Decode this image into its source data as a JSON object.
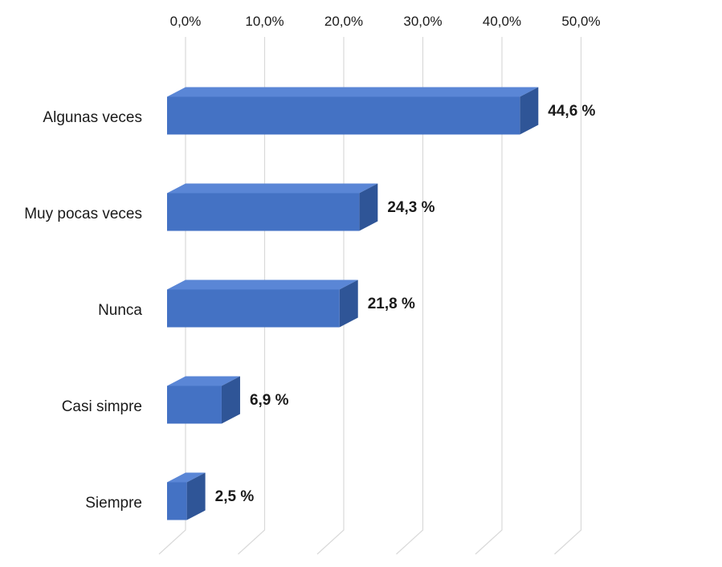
{
  "chart_data": {
    "type": "bar",
    "orientation": "horizontal",
    "style": "3d",
    "categories": [
      "Algunas veces",
      "Muy pocas veces",
      "Nunca",
      "Casi simpre",
      "Siempre"
    ],
    "values": [
      44.6,
      24.3,
      21.8,
      6.9,
      2.5
    ],
    "data_labels": [
      "44,6 %",
      "24,3 %",
      "21,8 %",
      "6,9 %",
      "2,5 %"
    ],
    "x_ticks": [
      "0,0%",
      "10,0%",
      "20,0%",
      "30,0%",
      "40,0%",
      "50,0%"
    ],
    "xlim": [
      0,
      50
    ],
    "axis_position": "top",
    "grid": true,
    "colors": {
      "bar_front": "#4472c4",
      "bar_top": "#5a86d6",
      "bar_side": "#2f5597",
      "grid": "#d9d9d9",
      "text": "#1a1a1a"
    }
  }
}
